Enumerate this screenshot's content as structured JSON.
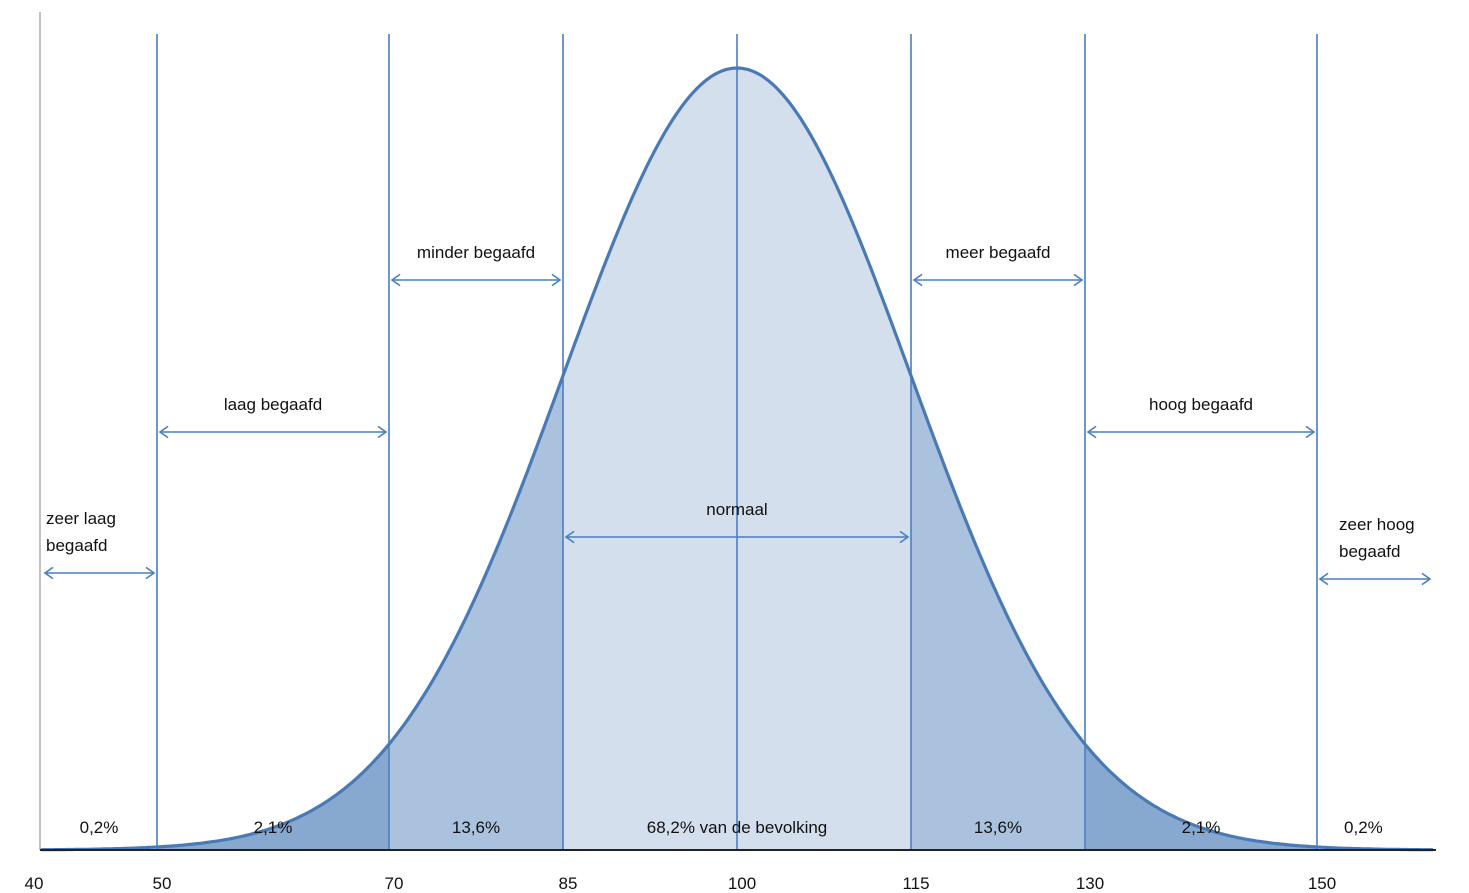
{
  "chart_data": {
    "type": "area",
    "distribution": {
      "mean": 100,
      "sd": 15
    },
    "x_ticks": [
      40,
      50,
      70,
      85,
      100,
      115,
      130,
      150
    ],
    "boundaries": [
      50,
      70,
      85,
      100,
      115,
      130,
      150
    ],
    "colors": {
      "curve": "#4a7ab5",
      "line": "#4a7fc0",
      "band_center": "#d3dfec",
      "band_mid": "#aac2dd",
      "band_outer": "#87a9d0"
    },
    "ranges": [
      {
        "name": "zeer laag begaafd",
        "lines": [
          "zeer laag",
          "begaafd"
        ],
        "from": 40,
        "to": 50
      },
      {
        "name": "laag begaafd",
        "lines": [
          "laag begaafd"
        ],
        "from": 50,
        "to": 70
      },
      {
        "name": "minder begaafd",
        "lines": [
          "minder begaafd"
        ],
        "from": 70,
        "to": 85
      },
      {
        "name": "normaal",
        "lines": [
          "normaal"
        ],
        "from": 85,
        "to": 115
      },
      {
        "name": "meer begaafd",
        "lines": [
          "meer begaafd"
        ],
        "from": 115,
        "to": 130
      },
      {
        "name": "hoog begaafd",
        "lines": [
          "hoog begaafd"
        ],
        "from": 130,
        "to": 150
      },
      {
        "name": "zeer hoog begaafd",
        "lines": [
          "zeer hoog",
          "begaafd"
        ],
        "from": 150,
        "to": 160
      }
    ],
    "percentages": [
      {
        "label": "0,2%",
        "position": 45
      },
      {
        "label": "2,1%",
        "position": 60
      },
      {
        "label": "13,6%",
        "position": 77.5
      },
      {
        "label": "68,2% van de bevolking",
        "position": 100
      },
      {
        "label": "13,6%",
        "position": 122.5
      },
      {
        "label": "2,1%",
        "position": 140
      },
      {
        "label": "0,2%",
        "position": 154
      }
    ]
  }
}
